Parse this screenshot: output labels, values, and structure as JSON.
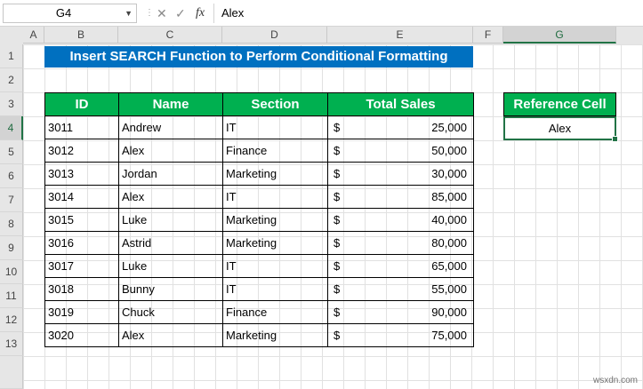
{
  "formula_bar": {
    "name_box": "G4",
    "fx_label": "fx",
    "formula_value": "Alex"
  },
  "columns": [
    "A",
    "B",
    "C",
    "D",
    "E",
    "F",
    "G"
  ],
  "rows": [
    "1",
    "2",
    "3",
    "4",
    "5",
    "6",
    "7",
    "8",
    "9",
    "10",
    "11",
    "12",
    "13"
  ],
  "selected_column": "G",
  "selected_row": "4",
  "title": "Insert SEARCH Function to Perform Conditional Formatting",
  "table": {
    "headers": [
      "ID",
      "Name",
      "Section",
      "Total Sales"
    ],
    "currency_symbol": "$",
    "rows": [
      {
        "id": "3011",
        "name": "Andrew",
        "section": "IT",
        "sales": "25,000"
      },
      {
        "id": "3012",
        "name": "Alex",
        "section": "Finance",
        "sales": "50,000"
      },
      {
        "id": "3013",
        "name": "Jordan",
        "section": "Marketing",
        "sales": "30,000"
      },
      {
        "id": "3014",
        "name": "Alex",
        "section": "IT",
        "sales": "85,000"
      },
      {
        "id": "3015",
        "name": "Luke",
        "section": "Marketing",
        "sales": "40,000"
      },
      {
        "id": "3016",
        "name": "Astrid",
        "section": "Marketing",
        "sales": "80,000"
      },
      {
        "id": "3017",
        "name": "Luke",
        "section": "IT",
        "sales": "65,000"
      },
      {
        "id": "3018",
        "name": "Bunny",
        "section": "IT",
        "sales": "55,000"
      },
      {
        "id": "3019",
        "name": "Chuck",
        "section": "Finance",
        "sales": "90,000"
      },
      {
        "id": "3020",
        "name": "Alex",
        "section": "Marketing",
        "sales": "75,000"
      }
    ]
  },
  "reference": {
    "header": "Reference Cell",
    "value": "Alex"
  },
  "watermark": "wsxdn.com",
  "colors": {
    "title_bg": "#0070c0",
    "header_bg": "#00b050",
    "selection": "#217346"
  }
}
